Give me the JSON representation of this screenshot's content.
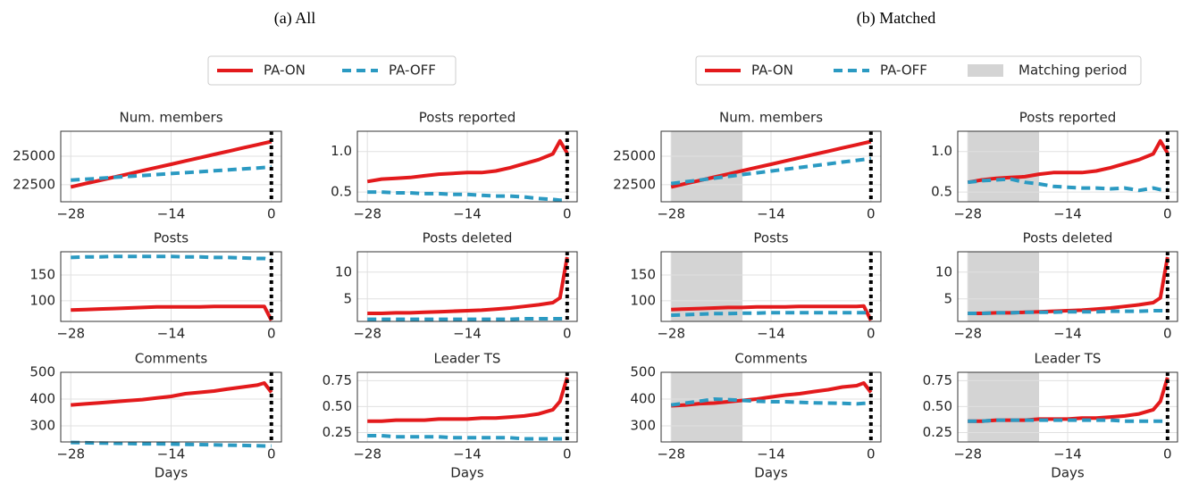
{
  "panels": [
    "(a) All",
    "(b) Matched"
  ],
  "chart_data": [
    {
      "type": "line",
      "title": "Num. members",
      "x": [
        -28,
        -26,
        -24,
        -22,
        -20,
        -18,
        -16,
        -14,
        -12,
        -10,
        -8,
        -6,
        -4,
        -2,
        -1,
        0
      ],
      "xlim": [
        -29.4,
        1.4
      ],
      "xticks": [
        {
          "value": -28,
          "label": "−28"
        },
        {
          "value": -14,
          "label": "−14"
        },
        0
      ],
      "ylim": [
        21000,
        27200
      ],
      "yticks": [
        22500,
        25000
      ],
      "vline": 0,
      "grid": true,
      "series": [
        {
          "name": "PA-ON",
          "color": "#e31a1c",
          "values": [
            22300,
            22590,
            22870,
            23160,
            23440,
            23730,
            24010,
            24300,
            24590,
            24870,
            25160,
            25440,
            25730,
            26010,
            26160,
            26300
          ]
        },
        {
          "name": "PA-OFF",
          "color": "#2b9ac2",
          "values": [
            22900,
            22980,
            23060,
            23150,
            23230,
            23310,
            23390,
            23480,
            23560,
            23640,
            23720,
            23800,
            23890,
            23970,
            24010,
            24050
          ]
        }
      ]
    },
    {
      "type": "line",
      "title": "Posts reported",
      "x": [
        -28,
        -26,
        -24,
        -22,
        -20,
        -18,
        -16,
        -14,
        -12,
        -10,
        -8,
        -6,
        -4,
        -2,
        -1,
        0
      ],
      "xlim": [
        -29.4,
        1.4
      ],
      "xticks": [
        {
          "value": -28,
          "label": "−28"
        },
        {
          "value": -14,
          "label": "−14"
        },
        0
      ],
      "ylim": [
        0.38,
        1.25
      ],
      "yticks": [
        0.5,
        {
          "value": 1,
          "label": "1.0"
        }
      ],
      "vline": 0,
      "grid": true,
      "series": [
        {
          "name": "PA-ON",
          "color": "#e31a1c",
          "values": [
            0.63,
            0.66,
            0.67,
            0.68,
            0.7,
            0.72,
            0.73,
            0.74,
            0.74,
            0.76,
            0.8,
            0.85,
            0.9,
            0.97,
            1.13,
            0.98
          ]
        },
        {
          "name": "PA-OFF",
          "color": "#2b9ac2",
          "values": [
            0.5,
            0.5,
            0.49,
            0.49,
            0.48,
            0.48,
            0.47,
            0.47,
            0.46,
            0.45,
            0.45,
            0.44,
            0.42,
            0.41,
            0.4,
            0.4
          ]
        }
      ]
    },
    {
      "type": "line",
      "title": "Posts",
      "x": [
        -28,
        -26,
        -24,
        -22,
        -20,
        -18,
        -16,
        -14,
        -12,
        -10,
        -8,
        -6,
        -4,
        -2,
        -1,
        0
      ],
      "xlim": [
        -29.4,
        1.4
      ],
      "xticks": [
        {
          "value": -28,
          "label": "−28"
        },
        {
          "value": -14,
          "label": "−14"
        },
        0
      ],
      "ylim": [
        60,
        195
      ],
      "yticks": [
        100,
        150
      ],
      "vline": 0,
      "grid": true,
      "series": [
        {
          "name": "PA-ON",
          "color": "#e31a1c",
          "values": [
            82,
            83,
            84,
            85,
            86,
            87,
            88,
            88,
            88,
            88,
            89,
            89,
            89,
            89,
            89,
            62
          ]
        },
        {
          "name": "PA-OFF",
          "color": "#2b9ac2",
          "values": [
            184,
            185,
            185,
            186,
            186,
            186,
            186,
            186,
            185,
            185,
            184,
            184,
            183,
            182,
            182,
            180
          ]
        }
      ]
    },
    {
      "type": "line",
      "title": "Posts deleted",
      "x": [
        -28,
        -26,
        -24,
        -22,
        -20,
        -18,
        -16,
        -14,
        -12,
        -10,
        -8,
        -6,
        -4,
        -2,
        -1,
        0
      ],
      "xlim": [
        -29.4,
        1.4
      ],
      "xticks": [
        {
          "value": -28,
          "label": "−28"
        },
        {
          "value": -14,
          "label": "−14"
        },
        0
      ],
      "ylim": [
        0.8,
        13.8
      ],
      "yticks": [
        5,
        10
      ],
      "vline": 0,
      "grid": true,
      "series": [
        {
          "name": "PA-ON",
          "color": "#e31a1c",
          "values": [
            2.3,
            2.3,
            2.4,
            2.4,
            2.5,
            2.6,
            2.7,
            2.8,
            2.9,
            3.1,
            3.3,
            3.6,
            3.9,
            4.3,
            5.2,
            12.8
          ]
        },
        {
          "name": "PA-OFF",
          "color": "#2b9ac2",
          "values": [
            1.2,
            1.2,
            1.2,
            1.2,
            1.2,
            1.2,
            1.2,
            1.2,
            1.2,
            1.2,
            1.2,
            1.3,
            1.3,
            1.3,
            1.3,
            1.3
          ]
        }
      ]
    },
    {
      "type": "line",
      "title": "Comments",
      "xlabel": "Days",
      "x": [
        -28,
        -26,
        -24,
        -22,
        -20,
        -18,
        -16,
        -14,
        -12,
        -10,
        -8,
        -6,
        -4,
        -2,
        -1,
        0
      ],
      "xlim": [
        -29.4,
        1.4
      ],
      "xticks": [
        {
          "value": -28,
          "label": "−28"
        },
        {
          "value": -14,
          "label": "−14"
        },
        0
      ],
      "ylim": [
        240,
        500
      ],
      "yticks": [
        300,
        400,
        500
      ],
      "vline": 0,
      "grid": true,
      "series": [
        {
          "name": "PA-ON",
          "color": "#e31a1c",
          "values": [
            378,
            382,
            386,
            390,
            394,
            398,
            404,
            410,
            420,
            425,
            430,
            438,
            445,
            452,
            460,
            425
          ]
        },
        {
          "name": "PA-OFF",
          "color": "#2b9ac2",
          "values": [
            238,
            237,
            236,
            235,
            234,
            233,
            233,
            232,
            231,
            230,
            229,
            228,
            227,
            226,
            225,
            225
          ]
        }
      ]
    },
    {
      "type": "line",
      "title": "Leader TS",
      "xlabel": "Days",
      "x": [
        -28,
        -26,
        -24,
        -22,
        -20,
        -18,
        -16,
        -14,
        -12,
        -10,
        -8,
        -6,
        -4,
        -2,
        -1,
        0
      ],
      "xlim": [
        -29.4,
        1.4
      ],
      "xticks": [
        {
          "value": -28,
          "label": "−28"
        },
        {
          "value": -14,
          "label": "−14"
        },
        0
      ],
      "ylim": [
        0.16,
        0.83
      ],
      "yticks": [
        0.25,
        {
          "value": 0.5,
          "label": "0.50"
        },
        0.75
      ],
      "vline": 0,
      "grid": true,
      "series": [
        {
          "name": "PA-ON",
          "color": "#e31a1c",
          "values": [
            0.36,
            0.36,
            0.37,
            0.37,
            0.37,
            0.38,
            0.38,
            0.38,
            0.39,
            0.39,
            0.4,
            0.41,
            0.43,
            0.47,
            0.55,
            0.78
          ]
        },
        {
          "name": "PA-OFF",
          "color": "#2b9ac2",
          "values": [
            0.22,
            0.22,
            0.21,
            0.21,
            0.21,
            0.21,
            0.2,
            0.2,
            0.2,
            0.2,
            0.2,
            0.19,
            0.19,
            0.19,
            0.19,
            0.19
          ]
        }
      ]
    },
    {
      "type": "line",
      "title": "Num. members",
      "x": [
        -28,
        -26,
        -24,
        -22,
        -20,
        -18,
        -16,
        -14,
        -12,
        -10,
        -8,
        -6,
        -4,
        -2,
        -1,
        0
      ],
      "xlim": [
        -29.4,
        1.4
      ],
      "xticks": [
        {
          "value": -28,
          "label": "−28"
        },
        {
          "value": -14,
          "label": "−14"
        },
        0
      ],
      "ylim": [
        21000,
        27200
      ],
      "yticks": [
        22500,
        25000
      ],
      "vline": 0,
      "grid": true,
      "shade": {
        "name": "Matching period",
        "range": [
          -28,
          -18
        ],
        "color": "#d4d4d4"
      },
      "series": [
        {
          "name": "PA-ON",
          "color": "#e31a1c",
          "values": [
            22300,
            22590,
            22870,
            23160,
            23440,
            23730,
            24010,
            24300,
            24590,
            24870,
            25160,
            25440,
            25730,
            26010,
            26160,
            26300
          ]
        },
        {
          "name": "PA-OFF",
          "color": "#2b9ac2",
          "values": [
            22600,
            22760,
            22910,
            23070,
            23230,
            23390,
            23540,
            23700,
            23860,
            24010,
            24170,
            24330,
            24490,
            24640,
            24720,
            24800
          ]
        }
      ]
    },
    {
      "type": "line",
      "title": "Posts reported",
      "x": [
        -28,
        -26,
        -24,
        -22,
        -20,
        -18,
        -16,
        -14,
        -12,
        -10,
        -8,
        -6,
        -4,
        -2,
        -1,
        0
      ],
      "xlim": [
        -29.4,
        1.4
      ],
      "xticks": [
        {
          "value": -28,
          "label": "−28"
        },
        {
          "value": -14,
          "label": "−14"
        },
        0
      ],
      "ylim": [
        0.38,
        1.25
      ],
      "yticks": [
        0.5,
        {
          "value": 1,
          "label": "1.0"
        }
      ],
      "vline": 0,
      "grid": true,
      "shade": {
        "name": "Matching period",
        "range": [
          -28,
          -18
        ],
        "color": "#d4d4d4"
      },
      "series": [
        {
          "name": "PA-ON",
          "color": "#e31a1c",
          "values": [
            0.62,
            0.65,
            0.67,
            0.68,
            0.69,
            0.72,
            0.74,
            0.74,
            0.74,
            0.76,
            0.8,
            0.85,
            0.9,
            0.97,
            1.13,
            0.98
          ]
        },
        {
          "name": "PA-OFF",
          "color": "#2b9ac2",
          "values": [
            0.62,
            0.64,
            0.65,
            0.66,
            0.62,
            0.6,
            0.57,
            0.56,
            0.55,
            0.55,
            0.54,
            0.55,
            0.52,
            0.55,
            0.53,
            0.53
          ]
        }
      ]
    },
    {
      "type": "line",
      "title": "Posts",
      "x": [
        -28,
        -26,
        -24,
        -22,
        -20,
        -18,
        -16,
        -14,
        -12,
        -10,
        -8,
        -6,
        -4,
        -2,
        -1,
        0
      ],
      "xlim": [
        -29.4,
        1.4
      ],
      "xticks": [
        {
          "value": -28,
          "label": "−28"
        },
        {
          "value": -14,
          "label": "−14"
        },
        0
      ],
      "ylim": [
        60,
        195
      ],
      "yticks": [
        100,
        150
      ],
      "vline": 0,
      "grid": true,
      "shade": {
        "name": "Matching period",
        "range": [
          -28,
          -18
        ],
        "color": "#d4d4d4"
      },
      "series": [
        {
          "name": "PA-ON",
          "color": "#e31a1c",
          "values": [
            83,
            84,
            85,
            86,
            87,
            87,
            88,
            88,
            88,
            89,
            89,
            89,
            89,
            89,
            90,
            62
          ]
        },
        {
          "name": "PA-OFF",
          "color": "#2b9ac2",
          "values": [
            72,
            73,
            74,
            75,
            75,
            76,
            76,
            77,
            77,
            77,
            77,
            77,
            77,
            77,
            77,
            77
          ]
        }
      ]
    },
    {
      "type": "line",
      "title": "Posts deleted",
      "x": [
        -28,
        -26,
        -24,
        -22,
        -20,
        -18,
        -16,
        -14,
        -12,
        -10,
        -8,
        -6,
        -4,
        -2,
        -1,
        0
      ],
      "xlim": [
        -29.4,
        1.4
      ],
      "xticks": [
        {
          "value": -28,
          "label": "−28"
        },
        {
          "value": -14,
          "label": "−14"
        },
        0
      ],
      "ylim": [
        0.8,
        13.8
      ],
      "yticks": [
        5,
        10
      ],
      "vline": 0,
      "grid": true,
      "shade": {
        "name": "Matching period",
        "range": [
          -28,
          -18
        ],
        "color": "#d4d4d4"
      },
      "series": [
        {
          "name": "PA-ON",
          "color": "#e31a1c",
          "values": [
            2.3,
            2.3,
            2.4,
            2.4,
            2.5,
            2.6,
            2.7,
            2.8,
            2.9,
            3.1,
            3.3,
            3.6,
            3.9,
            4.3,
            5.2,
            12.8
          ]
        },
        {
          "name": "PA-OFF",
          "color": "#2b9ac2",
          "values": [
            2.3,
            2.3,
            2.4,
            2.4,
            2.5,
            2.5,
            2.5,
            2.6,
            2.6,
            2.6,
            2.7,
            2.7,
            2.7,
            2.8,
            2.8,
            2.8
          ]
        }
      ]
    },
    {
      "type": "line",
      "title": "Comments",
      "xlabel": "Days",
      "x": [
        -28,
        -26,
        -24,
        -22,
        -20,
        -18,
        -16,
        -14,
        -12,
        -10,
        -8,
        -6,
        -4,
        -2,
        -1,
        0
      ],
      "xlim": [
        -29.4,
        1.4
      ],
      "xticks": [
        {
          "value": -28,
          "label": "−28"
        },
        {
          "value": -14,
          "label": "−14"
        },
        0
      ],
      "ylim": [
        240,
        500
      ],
      "yticks": [
        300,
        400,
        500
      ],
      "vline": 0,
      "grid": true,
      "shade": {
        "name": "Matching period",
        "range": [
          -28,
          -18
        ],
        "color": "#d4d4d4"
      },
      "series": [
        {
          "name": "PA-ON",
          "color": "#e31a1c",
          "values": [
            375,
            378,
            383,
            385,
            390,
            395,
            400,
            408,
            415,
            420,
            428,
            435,
            445,
            450,
            460,
            425
          ]
        },
        {
          "name": "PA-OFF",
          "color": "#2b9ac2",
          "values": [
            378,
            385,
            392,
            400,
            398,
            395,
            392,
            390,
            390,
            388,
            386,
            385,
            384,
            382,
            384,
            385
          ]
        }
      ]
    },
    {
      "type": "line",
      "title": "Leader TS",
      "xlabel": "Days",
      "x": [
        -28,
        -26,
        -24,
        -22,
        -20,
        -18,
        -16,
        -14,
        -12,
        -10,
        -8,
        -6,
        -4,
        -2,
        -1,
        0
      ],
      "xlim": [
        -29.4,
        1.4
      ],
      "xticks": [
        {
          "value": -28,
          "label": "−28"
        },
        {
          "value": -14,
          "label": "−14"
        },
        0
      ],
      "ylim": [
        0.16,
        0.83
      ],
      "yticks": [
        0.25,
        {
          "value": 0.5,
          "label": "0.50"
        },
        0.75
      ],
      "vline": 0,
      "grid": true,
      "shade": {
        "name": "Matching period",
        "range": [
          -28,
          -18
        ],
        "color": "#d4d4d4"
      },
      "series": [
        {
          "name": "PA-ON",
          "color": "#e31a1c",
          "values": [
            0.36,
            0.36,
            0.37,
            0.37,
            0.37,
            0.38,
            0.38,
            0.38,
            0.39,
            0.39,
            0.4,
            0.41,
            0.43,
            0.47,
            0.55,
            0.78
          ]
        },
        {
          "name": "PA-OFF",
          "color": "#2b9ac2",
          "values": [
            0.36,
            0.36,
            0.37,
            0.37,
            0.37,
            0.37,
            0.37,
            0.37,
            0.37,
            0.37,
            0.37,
            0.36,
            0.36,
            0.36,
            0.36,
            0.36
          ]
        }
      ]
    }
  ]
}
